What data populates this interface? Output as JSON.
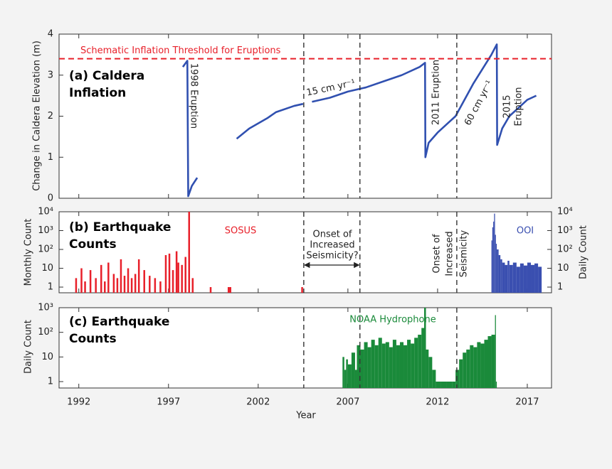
{
  "chart_data": [
    {
      "type": "line",
      "title": [
        "(a) Caldera",
        "Inflation"
      ],
      "ylabel": "Change in Caldera Elevation (m)",
      "threshold": {
        "value": 3.4,
        "label": "Schematic Inflation Threshold for Eruptions",
        "color": "#e8202a"
      },
      "annotations": [
        "1998 Eruption",
        "15 cm yr⁻¹",
        "2011 Eruption",
        "60 cm yr⁻¹",
        "2015",
        "Eruption"
      ],
      "series": [
        {
          "color": "#3050b0",
          "x": [
            1997.8,
            1998.05,
            1998.1,
            1998.3,
            1998.6,
            1999.5,
            2000.8,
            2001.5,
            2002.5,
            2003.0,
            2004.0,
            2004.5,
            2004.8,
            2005.0,
            2006.0,
            2007.0,
            2008.0,
            2009.0,
            2010.0,
            2011.0,
            2011.3,
            2011.32,
            2011.5,
            2012.0,
            2013.0,
            2014.0,
            2015.0,
            2015.3,
            2015.32,
            2015.6,
            2016.0,
            2017.0,
            2017.5
          ],
          "values": [
            3.2,
            3.35,
            0.05,
            0.3,
            0.5,
            null,
            1.45,
            1.7,
            1.95,
            2.1,
            2.25,
            2.3,
            null,
            2.35,
            2.45,
            2.6,
            2.7,
            2.85,
            3.0,
            3.2,
            3.3,
            1.0,
            1.35,
            1.6,
            2.0,
            2.8,
            3.5,
            3.75,
            1.3,
            1.7,
            2.0,
            2.4,
            2.5
          ]
        }
      ],
      "xlim": [
        1990.9,
        2018.35
      ],
      "xticks": [
        1992,
        1997,
        2002,
        2007,
        2012,
        2017
      ],
      "ylim": [
        0,
        4
      ],
      "yticks": [
        0,
        1,
        2,
        3,
        4
      ],
      "vlines": [
        2004.54,
        2007.67,
        2013.07
      ]
    },
    {
      "type": "bar",
      "log": true,
      "title": [
        "(b) Earthquake",
        "Counts"
      ],
      "ylabel": "Monthly Count",
      "y2label": "Daily Count",
      "annotations": [
        "Onset of",
        "Increased",
        "Seismicity?",
        "Onset of",
        "Increased",
        "Seismicity"
      ],
      "series": [
        {
          "name": "SOSUS",
          "color": "#e8202a",
          "x": [
            1991.8,
            1992.1,
            1992.3,
            1992.6,
            1992.9,
            1993.2,
            1993.4,
            1993.6,
            1993.9,
            1994.1,
            1994.3,
            1994.5,
            1994.7,
            1994.9,
            1995.1,
            1995.3,
            1995.6,
            1995.9,
            1996.2,
            1996.5,
            1996.8,
            1997.0,
            1997.2,
            1997.4,
            1997.5,
            1997.7,
            1997.9,
            1998.1,
            1998.3,
            1999.3,
            2000.3,
            2000.4,
            2004.4
          ],
          "values": [
            3,
            10,
            2,
            8,
            3,
            15,
            2,
            20,
            5,
            3,
            30,
            4,
            10,
            3,
            5,
            30,
            8,
            4,
            3,
            2,
            50,
            60,
            8,
            80,
            20,
            15,
            40,
            10000,
            3,
            1,
            1,
            1,
            1
          ]
        },
        {
          "name": "OOI",
          "color": "#3a4fb0",
          "axis": "y2",
          "x": [
            2015.0,
            2015.05,
            2015.1,
            2015.15,
            2015.2,
            2015.25,
            2015.3,
            2015.4,
            2015.5,
            2015.6,
            2015.75,
            2015.9,
            2016.0,
            2016.2,
            2016.4,
            2016.6,
            2016.8,
            2017.0,
            2017.2,
            2017.4,
            2017.6
          ],
          "values": [
            300,
            1500,
            3000,
            8000,
            600,
            200,
            100,
            50,
            30,
            20,
            15,
            25,
            15,
            20,
            12,
            18,
            14,
            20,
            15,
            18,
            12
          ]
        }
      ],
      "xlim": [
        1990.9,
        2018.35
      ],
      "xticks": [
        1992,
        1997,
        2002,
        2007,
        2012,
        2017
      ],
      "ylim": [
        0.5,
        10000
      ],
      "yticks": [
        1,
        10,
        {
          "value": 100,
          "label": "10²"
        },
        {
          "value": 1000,
          "label": "10³"
        },
        {
          "value": 10000,
          "label": "10⁴"
        }
      ],
      "y2lim": [
        0.5,
        10000
      ],
      "y2ticks": [
        1,
        10,
        {
          "value": 100,
          "label": "10²"
        },
        {
          "value": 1000,
          "label": "10³"
        },
        {
          "value": 10000,
          "label": "10⁴"
        }
      ],
      "vlines": [
        2004.54,
        2007.67,
        2013.07
      ]
    },
    {
      "type": "bar",
      "log": true,
      "title": [
        "(c) Earthquake",
        "Counts"
      ],
      "ylabel": "Daily Count",
      "xlabel": "Year",
      "series": [
        {
          "name": "NOAA Hydrophone",
          "color": "#1a8a3a",
          "x": [
            2006.7,
            2006.8,
            2006.9,
            2007.0,
            2007.2,
            2007.4,
            2007.5,
            2007.7,
            2007.9,
            2008.1,
            2008.3,
            2008.5,
            2008.7,
            2008.9,
            2009.1,
            2009.3,
            2009.5,
            2009.7,
            2009.9,
            2010.1,
            2010.3,
            2010.5,
            2010.7,
            2010.9,
            2011.1,
            2011.25,
            2011.35,
            2011.5,
            2011.7,
            2011.9,
            2012.2,
            2012.5,
            2012.8,
            2013.0,
            2013.2,
            2013.4,
            2013.6,
            2013.8,
            2014.0,
            2014.2,
            2014.4,
            2014.6,
            2014.8,
            2015.0,
            2015.2,
            2015.25
          ],
          "values": [
            10,
            3,
            8,
            5,
            15,
            3,
            30,
            20,
            40,
            25,
            50,
            30,
            60,
            35,
            40,
            25,
            50,
            30,
            40,
            30,
            50,
            35,
            60,
            80,
            150,
            1000,
            20,
            10,
            3,
            1,
            1,
            1,
            1,
            3,
            8,
            15,
            20,
            30,
            25,
            40,
            35,
            50,
            70,
            80,
            500,
            1
          ]
        }
      ],
      "xlim": [
        1990.9,
        2018.35
      ],
      "xticks": [
        1992,
        1997,
        2002,
        2007,
        2012,
        2017
      ],
      "ylim": [
        0.55,
        1000
      ],
      "yticks": [
        1,
        10,
        {
          "value": 100,
          "label": "10²"
        },
        {
          "value": 1000,
          "label": "10³"
        }
      ],
      "vlines": [
        2004.54,
        2007.67,
        2013.07
      ]
    }
  ]
}
